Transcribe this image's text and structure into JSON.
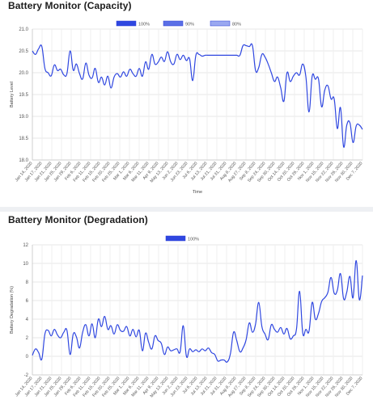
{
  "charts": [
    {
      "id": "capacity",
      "title": "Battery Monitor (Capacity)",
      "chart_data": {
        "type": "line",
        "xlabel": "Time",
        "ylabel": "Battery Level",
        "ylim": [
          18.0,
          21.0
        ],
        "y_ticks": [
          "21.0",
          "20.5",
          "20.0",
          "19.5",
          "19.0",
          "18.5",
          "18.0"
        ],
        "x_ticks": [
          "Jan 14, 2020",
          "Jan 17, 2020",
          "Jan 21, 2020",
          "Jan 25, 2020",
          "Jan 29, 2020",
          "Feb 6, 2020",
          "Feb 11, 2020",
          "Feb 15, 2020",
          "Feb 20, 2020",
          "Feb 25, 2020",
          "Mar 1, 2020",
          "Mar 6, 2020",
          "Mar 11, 2020",
          "Apr 9, 2020",
          "May 13, 2020",
          "Jun 2, 2020",
          "Jun 23, 2020",
          "Jul 6, 2020",
          "Jul 13, 2020",
          "Jul 21, 2020",
          "Jul 31, 2020",
          "Aug 8, 2020",
          "Aug 27, 2020",
          "Sep 8, 2020",
          "Sep 24, 2020",
          "Sep 30, 2020",
          "Oct 14, 2020",
          "Oct 20, 2020",
          "Oct 26, 2020",
          "Nov 1, 2020",
          "Nov 15, 2020",
          "Nov 22, 2020",
          "Nov 26, 2020",
          "Nov 30, 2020",
          "Dec 7, 2020"
        ],
        "legend_position": "top",
        "grid": true,
        "series": [
          {
            "name": "100%",
            "color": "#2f47e0",
            "values": [
              20.5,
              20.42,
              20.55,
              20.6,
              20.1,
              20.0,
              19.93,
              20.18,
              20.05,
              20.08,
              19.95,
              19.98,
              20.5,
              20.06,
              20.2,
              19.98,
              19.86,
              20.22,
              19.95,
              19.88,
              20.1,
              19.78,
              19.9,
              19.72,
              19.92,
              19.65,
              19.9,
              19.98,
              19.9,
              20.02,
              19.92,
              20.08,
              19.98,
              19.92,
              20.1,
              19.92,
              20.25,
              20.08,
              20.42,
              20.2,
              20.24,
              20.36,
              20.26,
              20.48,
              20.25,
              20.2,
              20.42,
              20.3,
              20.4,
              20.28,
              20.32,
              19.82,
              20.4,
              20.42,
              20.38,
              20.4,
              20.4,
              20.4,
              20.4,
              20.4,
              20.4,
              20.4,
              20.4,
              20.4,
              20.4,
              20.4,
              20.4,
              20.62,
              20.62,
              20.6,
              20.62,
              20.05,
              20.12,
              20.42,
              20.36,
              20.2,
              20.0,
              19.8,
              19.9,
              19.65,
              19.35,
              20.0,
              19.8,
              19.92,
              20.0,
              19.95,
              20.2,
              19.9,
              19.1,
              19.92,
              19.85,
              19.86,
              19.22,
              19.6,
              19.7,
              19.4,
              19.4,
              18.72,
              19.2,
              18.3,
              18.8,
              18.85,
              18.4,
              18.78,
              18.8,
              18.7
            ]
          },
          {
            "name": "90%",
            "color": "#5a6fe6",
            "values": []
          },
          {
            "name": "80%",
            "color": "#9aa8f0",
            "values": []
          }
        ]
      }
    },
    {
      "id": "degradation",
      "title": "Battery Monitor (Degradation)",
      "chart_data": {
        "type": "line",
        "xlabel": "",
        "ylabel": "Battery Degradation (%)",
        "ylim": [
          -2,
          12
        ],
        "y_ticks": [
          "12",
          "10",
          "8",
          "6",
          "4",
          "2",
          "0",
          "-2"
        ],
        "x_ticks": [
          "Jan 14, 2020",
          "Jan 17, 2020",
          "Jan 21, 2020",
          "Jan 25, 2020",
          "Jan 29, 2020",
          "Feb 6, 2020",
          "Feb 11, 2020",
          "Feb 15, 2020",
          "Feb 20, 2020",
          "Feb 25, 2020",
          "Mar 1, 2020",
          "Mar 6, 2020",
          "Mar 11, 2020",
          "Apr 9, 2020",
          "May 13, 2020",
          "Jun 2, 2020",
          "Jun 23, 2020",
          "Jul 6, 2020",
          "Jul 13, 2020",
          "Jul 21, 2020",
          "Jul 31, 2020",
          "Aug 8, 2020",
          "Aug 27, 2020",
          "Sep 8, 2020",
          "Sep 24, 2020",
          "Sep 30, 2020",
          "Oct 14, 2020",
          "Oct 20, 2020",
          "Oct 26, 2020",
          "Nov 1, 2020",
          "Nov 15, 2020",
          "Nov 22, 2020",
          "Nov 26, 2020",
          "Nov 30, 2020",
          "Dec 7, 2020"
        ],
        "legend_position": "top",
        "grid": true,
        "series": [
          {
            "name": "100%",
            "color": "#2f47e0",
            "values": [
              0.1,
              0.8,
              0.4,
              -0.3,
              2.4,
              2.8,
              2.2,
              2.9,
              2.3,
              2.0,
              2.6,
              2.8,
              0.2,
              2.4,
              2.1,
              0.9,
              2.6,
              3.4,
              2.2,
              3.5,
              2.0,
              4.0,
              3.2,
              4.3,
              2.9,
              3.3,
              2.4,
              3.4,
              2.8,
              2.7,
              3.2,
              2.2,
              2.9,
              2.1,
              2.8,
              0.6,
              2.5,
              1.5,
              0.8,
              2.2,
              1.7,
              1.4,
              0.2,
              1.0,
              0.6,
              0.7,
              0.8,
              0.5,
              3.3,
              0.0,
              0.8,
              0.5,
              0.7,
              0.5,
              0.8,
              0.6,
              0.9,
              0.4,
              0.2,
              -0.5,
              -0.4,
              -0.4,
              -0.6,
              0.3,
              2.6,
              1.7,
              0.5,
              0.9,
              1.8,
              3.6,
              2.6,
              3.5,
              5.8,
              3.2,
              2.4,
              1.8,
              3.4,
              2.9,
              2.6,
              3.1,
              2.4,
              3.0,
              1.9,
              2.2,
              2.9,
              7.0,
              2.5,
              2.9,
              2.7,
              5.8,
              4.0,
              4.6,
              5.9,
              6.3,
              6.9,
              8.5,
              6.8,
              7.1,
              8.9,
              6.2,
              6.9,
              8.6,
              6.3,
              10.3,
              6.1,
              8.7
            ]
          }
        ]
      }
    }
  ]
}
